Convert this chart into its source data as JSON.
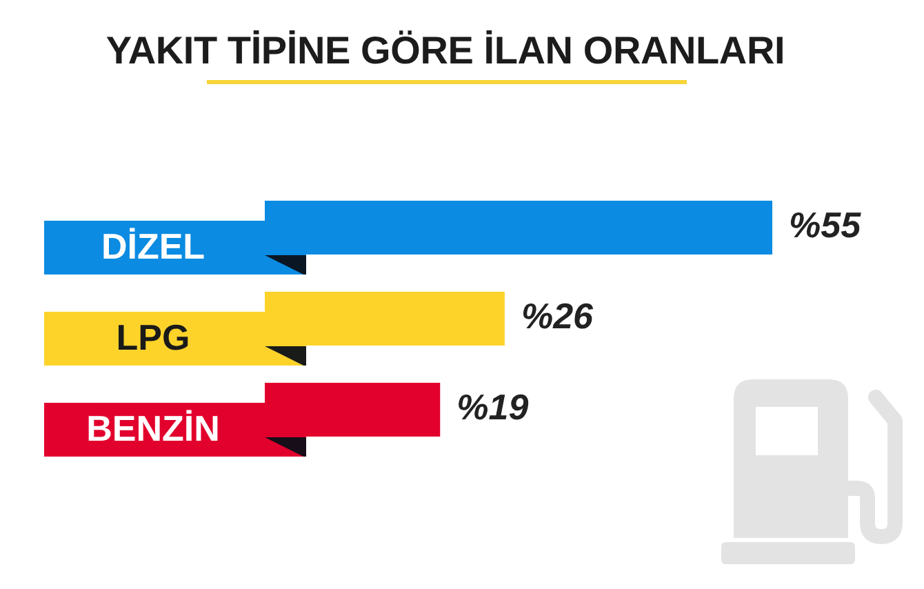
{
  "chart_data": {
    "type": "bar",
    "orientation": "horizontal",
    "title": "YAKIT TİPİNE GÖRE İLAN ORANLARI",
    "categories": [
      "DİZEL",
      "LPG",
      "BENZİN"
    ],
    "values": [
      55,
      26,
      19
    ],
    "colors": [
      "#0b8be2",
      "#fdd32a",
      "#e2002d"
    ],
    "value_labels": [
      "%55",
      "%26",
      "%19"
    ],
    "tick_labels": "y"
  }
}
